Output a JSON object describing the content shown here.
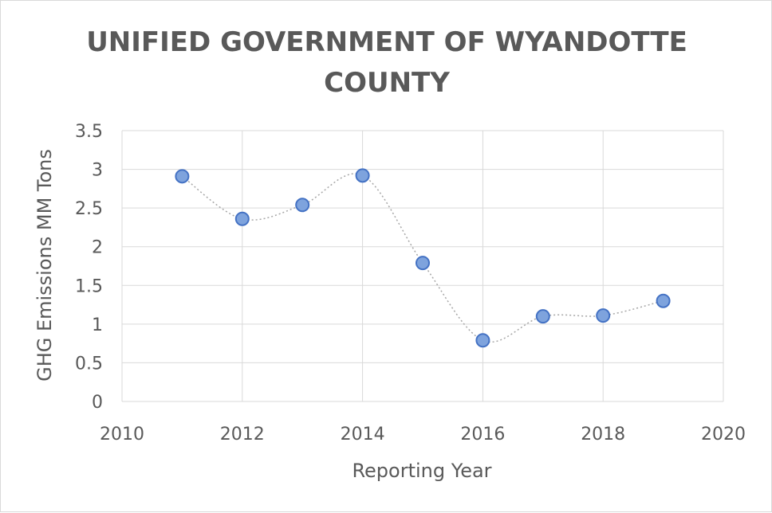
{
  "chart_data": {
    "type": "scatter",
    "title_lines": [
      "UNIFIED GOVERNMENT OF WYANDOTTE",
      "COUNTY"
    ],
    "xlabel": "Reporting Year",
    "ylabel": "GHG Emissions MM Tons",
    "xlim": [
      2010,
      2020
    ],
    "ylim": [
      0,
      3.5
    ],
    "x_ticks": [
      "2010",
      "2012",
      "2014",
      "2016",
      "2018",
      "2020"
    ],
    "y_ticks": [
      "0",
      "0.5",
      "1",
      "1.5",
      "2",
      "2.5",
      "3",
      "3.5"
    ],
    "grid": true,
    "smoothed_line": true,
    "series": [
      {
        "x": [
          2011,
          2012,
          2013,
          2014,
          2015,
          2016,
          2017,
          2018,
          2019
        ],
        "y": [
          2.91,
          2.36,
          2.54,
          2.92,
          1.79,
          0.79,
          1.1,
          1.11,
          1.3
        ]
      }
    ],
    "colors": {
      "marker_fill": "#7ea3dd",
      "marker_stroke": "#4472c4",
      "line": "#a6a6a6",
      "grid": "#d9d9d9",
      "text": "#595959"
    }
  }
}
